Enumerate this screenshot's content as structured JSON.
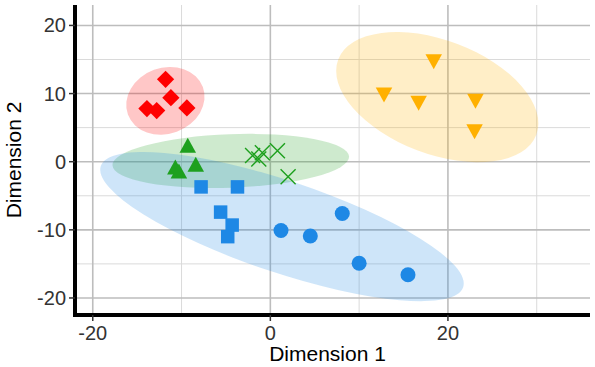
{
  "chart_data": {
    "type": "scatter",
    "x_label": "Dimension 1",
    "y_label": "Dimension 2",
    "xlim": [
      -22,
      36
    ],
    "ylim": [
      -22.5,
      23
    ],
    "xticks": [
      -20,
      0,
      20
    ],
    "yticks": [
      -20,
      -10,
      0,
      10,
      20
    ],
    "grid": true,
    "series": [
      {
        "color": "#ff0000",
        "marker": "diamond",
        "x": [
          -11.8,
          -13.9,
          -12.8,
          -11.2,
          -9.4
        ],
        "values": [
          12.1,
          7.8,
          7.5,
          9.4,
          7.9
        ]
      },
      {
        "color": "#1ea01e",
        "marker": "triangle",
        "x": [
          -9.3,
          -10.7,
          -8.4,
          -10.3
        ],
        "values": [
          2.2,
          -1.0,
          -0.6,
          -1.6
        ]
      },
      {
        "color": "#1ea01e",
        "marker": "x",
        "x": [
          -2.0,
          -0.9,
          -1.3,
          0.8,
          2.0
        ],
        "values": [
          0.9,
          1.3,
          0.4,
          1.6,
          -2.2
        ]
      },
      {
        "color": "#1e88e5",
        "marker": "square",
        "x": [
          -7.8,
          -3.7,
          -5.6,
          -4.3,
          -4.8
        ],
        "values": [
          -3.7,
          -3.7,
          -7.4,
          -9.3,
          -11.0
        ]
      },
      {
        "color": "#1e88e5",
        "marker": "circle",
        "x": [
          1.2,
          4.5,
          8.1,
          10.0,
          15.5
        ],
        "values": [
          -10.1,
          -10.9,
          -7.6,
          -14.9,
          -16.6
        ]
      },
      {
        "color": "#ffb000",
        "marker": "triangle-down",
        "x": [
          12.8,
          18.4,
          16.7,
          23.1,
          23.0
        ],
        "values": [
          10.0,
          14.9,
          8.8,
          9.1,
          4.6
        ]
      }
    ]
  }
}
